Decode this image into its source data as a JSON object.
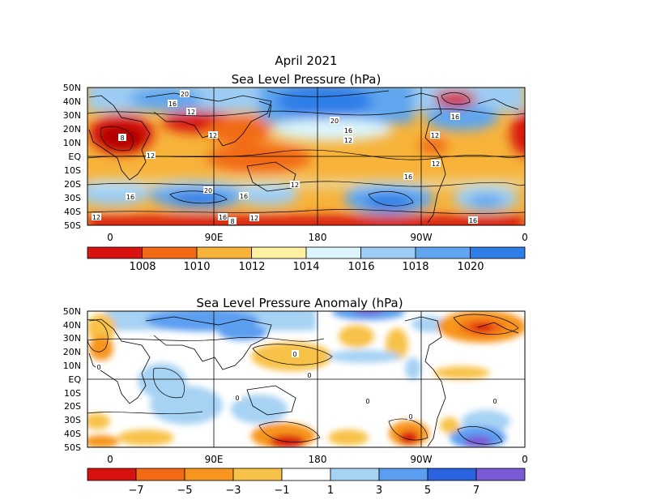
{
  "title_line1": "April 2021",
  "panels": [
    {
      "id": "slp",
      "title": "Sea Level Pressure (hPa)",
      "lat_labels": [
        "50N",
        "40N",
        "30N",
        "20N",
        "10N",
        "EQ",
        "10S",
        "20S",
        "30S",
        "40S",
        "50S"
      ],
      "lon_labels": [
        "0",
        "90E",
        "180",
        "90W",
        "0"
      ],
      "colorbar_labels": [
        "1008",
        "1010",
        "1012",
        "1014",
        "1016",
        "1018",
        "1020"
      ],
      "colorbar_colors": [
        "#d8120e",
        "#f26a16",
        "#f7b33a",
        "#fdf0a0",
        "#dcf4fb",
        "#9cccf4",
        "#5fa6ee",
        "#2f7ee8"
      ],
      "contour_labels": [
        "20",
        "16",
        "12",
        "12",
        "8",
        "12",
        "12",
        "16",
        "20",
        "16",
        "12",
        "16",
        "12",
        "16",
        "12",
        "16",
        "20",
        "12",
        "16",
        "8",
        "12",
        "16"
      ]
    },
    {
      "id": "anom",
      "title": "Sea Level Pressure Anomaly (hPa)",
      "lat_labels": [
        "50N",
        "40N",
        "30N",
        "20N",
        "10N",
        "EQ",
        "10S",
        "20S",
        "30S",
        "40S",
        "50S"
      ],
      "lon_labels": [
        "0",
        "90E",
        "180",
        "90W",
        "0"
      ],
      "colorbar_labels": [
        "−7",
        "−5",
        "−3",
        "−1",
        "1",
        "3",
        "5",
        "7"
      ],
      "colorbar_colors": [
        "#d8120e",
        "#f26a16",
        "#f7951e",
        "#f8c24a",
        "#ffffff",
        "#a6d2f4",
        "#5b9ef0",
        "#2a62e0",
        "#7b5ad6"
      ],
      "contour_labels": [
        "0",
        "0",
        "0",
        "0",
        "0",
        "0",
        "0"
      ]
    }
  ]
}
